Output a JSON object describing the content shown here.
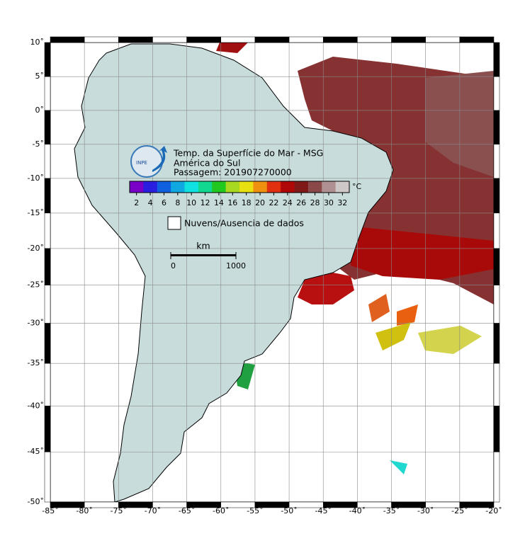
{
  "map": {
    "xlim": [
      -85,
      -20
    ],
    "ylim": [
      -50,
      10
    ],
    "projection": "mercator",
    "grid": true,
    "xticks": [
      {
        "value": -85,
        "label": "-85˚"
      },
      {
        "value": -80,
        "label": "-80˚"
      },
      {
        "value": -75,
        "label": "-75˚"
      },
      {
        "value": -70,
        "label": "-70˚"
      },
      {
        "value": -65,
        "label": "-65˚"
      },
      {
        "value": -60,
        "label": "-60˚"
      },
      {
        "value": -55,
        "label": "-55˚"
      },
      {
        "value": -50,
        "label": "-50˚"
      },
      {
        "value": -45,
        "label": "-45˚"
      },
      {
        "value": -40,
        "label": "-40˚"
      },
      {
        "value": -35,
        "label": "-35˚"
      },
      {
        "value": -30,
        "label": "-30˚"
      },
      {
        "value": -25,
        "label": "-25˚"
      },
      {
        "value": -20,
        "label": "-20˚"
      }
    ],
    "yticks": [
      {
        "value": 10,
        "label": "10˚"
      },
      {
        "value": 5,
        "label": "5˚"
      },
      {
        "value": 0,
        "label": "0˚"
      },
      {
        "value": -5,
        "label": "-5˚"
      },
      {
        "value": -10,
        "label": "-10˚"
      },
      {
        "value": -15,
        "label": "-15˚"
      },
      {
        "value": -20,
        "label": "-20˚"
      },
      {
        "value": -25,
        "label": "-25˚"
      },
      {
        "value": -30,
        "label": "-30˚"
      },
      {
        "value": -35,
        "label": "-35˚"
      },
      {
        "value": -40,
        "label": "-40˚"
      },
      {
        "value": -45,
        "label": "-45˚"
      },
      {
        "value": -50,
        "label": "-50˚"
      }
    ]
  },
  "legend": {
    "title": "Temp. da Superfície do Mar - MSG",
    "region": "América do Sul",
    "pass": "Passagem: 201907270000",
    "unit": "°C",
    "clim": [
      1,
      33
    ],
    "colormap": [
      "#7a00c8",
      "#2a1ee0",
      "#1060e0",
      "#10a8e0",
      "#10e0e0",
      "#10d890",
      "#20c820",
      "#a8d820",
      "#e8e010",
      "#f09010",
      "#e03010",
      "#b00808",
      "#801818",
      "#8a4848",
      "#b09090",
      "#d0c8c8"
    ],
    "ticks": [
      2,
      4,
      6,
      8,
      10,
      12,
      14,
      16,
      18,
      20,
      22,
      24,
      26,
      28,
      30,
      32
    ],
    "no_data": "Nuvens/Ausencia de dados",
    "logo": "INPE"
  },
  "scale_bar": {
    "unit": "km",
    "ticks": [
      0,
      1000
    ]
  }
}
